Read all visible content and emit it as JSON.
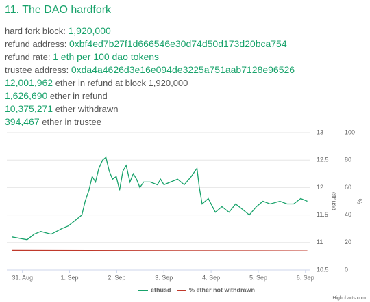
{
  "header": {
    "title": "11. The DAO hardfork"
  },
  "facts": [
    {
      "label": "hard fork block:",
      "value": "1,920,000"
    },
    {
      "label": "refund address:",
      "value": "0xbf4ed7b27f1d666546e30d74d50d173d20bca754"
    },
    {
      "label": "refund rate:",
      "value": "1 eth per 100 dao tokens"
    },
    {
      "label": "trustee address:",
      "value": "0xda4a4626d3e16e094de3225a751aab7128e96526"
    }
  ],
  "totals": [
    {
      "value": "12,001,962",
      "label": "ether in refund at block 1,920,000"
    },
    {
      "value": "1,626,690",
      "label": "ether in refund"
    },
    {
      "value": "10,375,271",
      "label": "ether withdrawn"
    },
    {
      "value": "394,467",
      "label": "ether in trustee"
    }
  ],
  "chart_data": {
    "type": "line",
    "xlim": [
      -0.33,
      6.09
    ],
    "xticks": [
      {
        "value": 0,
        "label": "31. Aug"
      },
      {
        "value": 1,
        "label": "1. Sep"
      },
      {
        "value": 2,
        "label": "2. Sep"
      },
      {
        "value": 3,
        "label": "3. Sep"
      },
      {
        "value": 4,
        "label": "4. Sep"
      },
      {
        "value": 5,
        "label": "5. Sep"
      },
      {
        "value": 6,
        "label": "6. Sep"
      }
    ],
    "ylim": [
      10.5,
      13
    ],
    "yticks": [
      10.5,
      11,
      11.5,
      12,
      12.5,
      13
    ],
    "ylabel": "ethusd",
    "y2lim": [
      0,
      100
    ],
    "y2ticks": [
      0,
      20,
      40,
      60,
      80,
      100
    ],
    "y2label": "%",
    "grid": true,
    "series": [
      {
        "name": "ethusd",
        "color": "#17a26a",
        "x": [
          -0.22,
          0.1,
          0.25,
          0.39,
          0.61,
          0.83,
          0.97,
          1.12,
          1.26,
          1.33,
          1.41,
          1.48,
          1.55,
          1.62,
          1.7,
          1.77,
          1.84,
          1.91,
          1.99,
          2.06,
          2.13,
          2.2,
          2.28,
          2.35,
          2.42,
          2.49,
          2.57,
          2.71,
          2.86,
          2.93,
          3.0,
          3.14,
          3.29,
          3.43,
          3.58,
          3.7,
          3.75,
          3.81,
          3.94,
          4.09,
          4.23,
          4.38,
          4.52,
          4.67,
          4.81,
          4.96,
          5.1,
          5.25,
          5.46,
          5.61,
          5.75,
          5.9,
          6.04
        ],
        "values": [
          11.1,
          11.05,
          11.15,
          11.2,
          11.15,
          11.25,
          11.3,
          11.4,
          11.5,
          11.75,
          11.95,
          12.2,
          12.1,
          12.35,
          12.5,
          12.55,
          12.3,
          12.15,
          12.2,
          11.95,
          12.3,
          12.4,
          12.1,
          12.25,
          12.15,
          12.0,
          12.1,
          12.1,
          12.05,
          12.15,
          12.05,
          12.1,
          12.15,
          12.05,
          12.2,
          12.35,
          12.0,
          11.7,
          11.8,
          11.55,
          11.65,
          11.55,
          11.7,
          11.6,
          11.5,
          11.65,
          11.75,
          11.7,
          11.75,
          11.7,
          11.7,
          11.8,
          11.75
        ]
      },
      {
        "name": "% ether not withdrawn",
        "color": "#c0392b",
        "axis": "y2",
        "x": [
          -0.22,
          6.04
        ],
        "values": [
          14.2,
          13.8
        ]
      }
    ],
    "credit": "Highcharts.com"
  }
}
